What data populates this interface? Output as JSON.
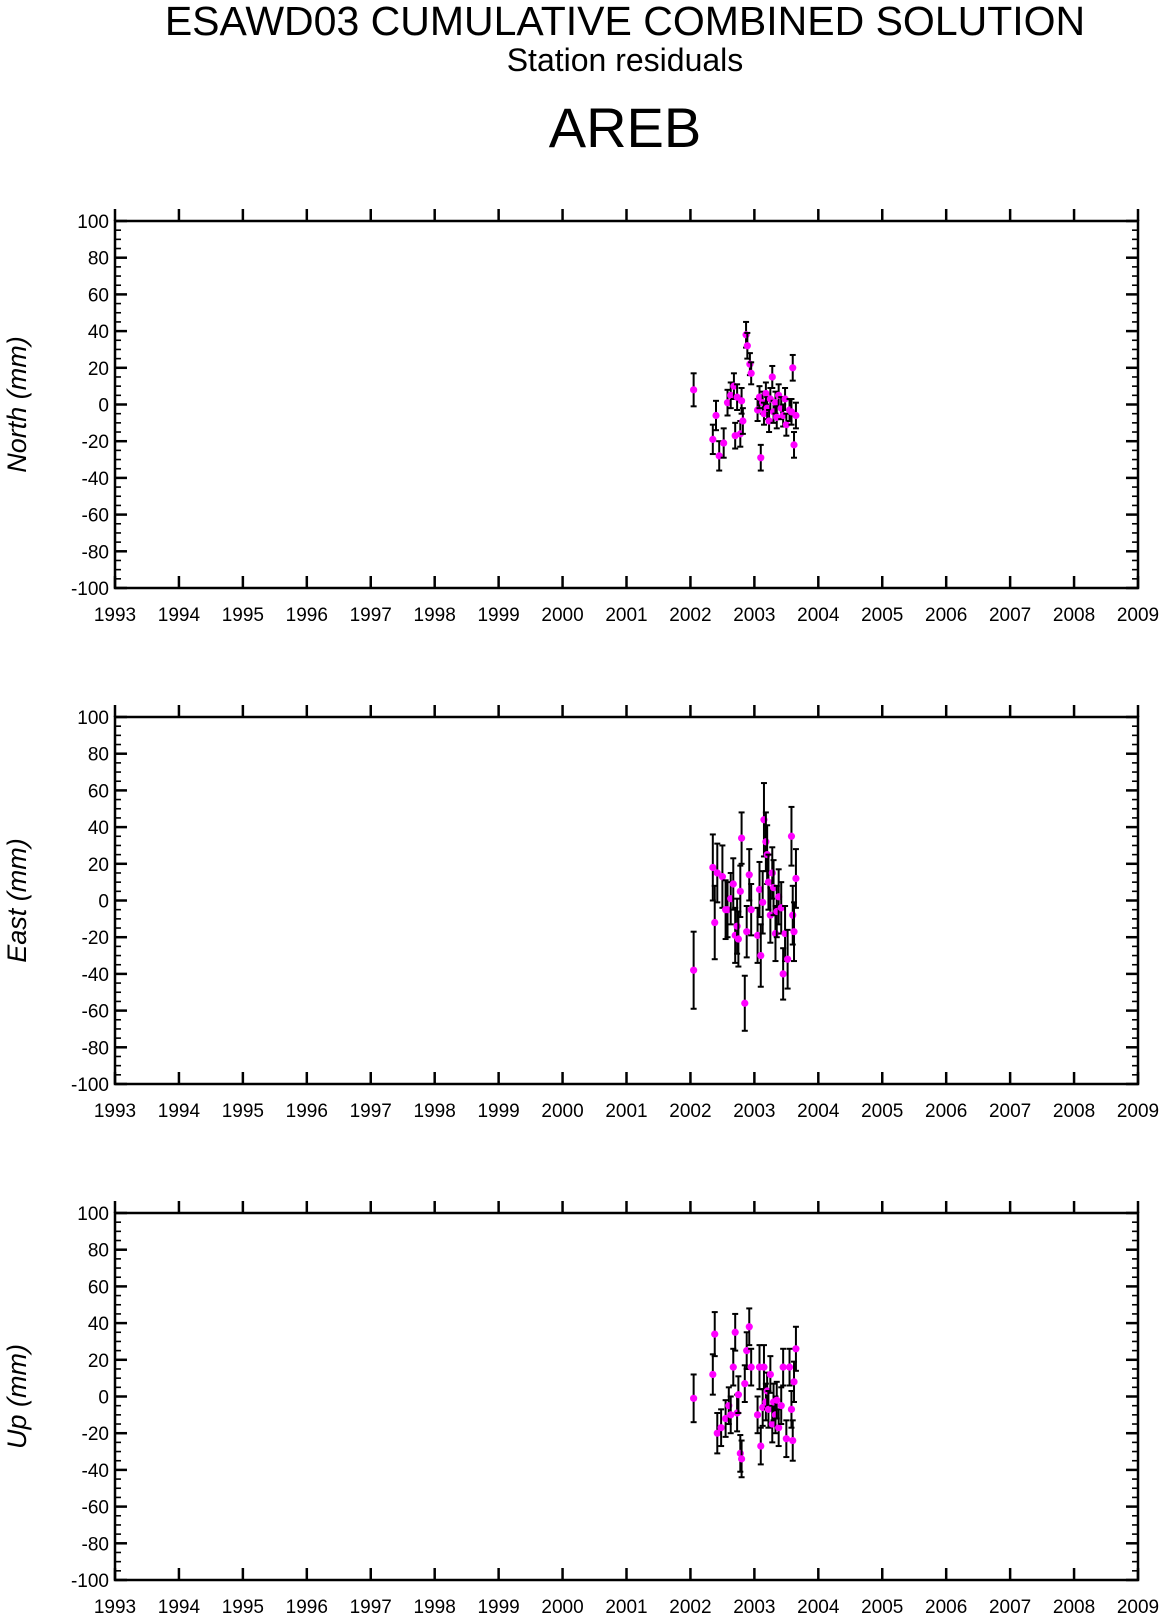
{
  "title": "ESAWD03 CUMULATIVE COMBINED SOLUTION",
  "subtitle": "Station residuals",
  "station": "AREB",
  "colors": {
    "point": "#ff00ff",
    "errorbar": "#000000",
    "axis": "#000000"
  },
  "chart_data": [
    {
      "type": "scatter",
      "ylabel": "North (mm)",
      "xlim": [
        1993,
        2009
      ],
      "ylim": [
        -100,
        100
      ],
      "xticks": [
        "1993",
        "1994",
        "1995",
        "1996",
        "1997",
        "1998",
        "1999",
        "2000",
        "2001",
        "2002",
        "2003",
        "2004",
        "2005",
        "2006",
        "2007",
        "2008",
        "2009"
      ],
      "yticks": [
        "100",
        "80",
        "60",
        "40",
        "20",
        "0",
        "-20",
        "-40",
        "-60",
        "-80",
        "-100"
      ],
      "grid": false,
      "series": [
        {
          "error_bars": true,
          "points": [
            [
              2002.05,
              8,
              9
            ],
            [
              2002.35,
              -19,
              8
            ],
            [
              2002.4,
              -6,
              8
            ],
            [
              2002.45,
              -28,
              8
            ],
            [
              2002.52,
              -21,
              8
            ],
            [
              2002.58,
              1,
              7
            ],
            [
              2002.63,
              5,
              7
            ],
            [
              2002.68,
              10,
              7
            ],
            [
              2002.7,
              -17,
              7
            ],
            [
              2002.73,
              4,
              7
            ],
            [
              2002.78,
              -16,
              7
            ],
            [
              2002.8,
              2,
              7
            ],
            [
              2002.82,
              -9,
              7
            ],
            [
              2002.87,
              38,
              7
            ],
            [
              2002.89,
              32,
              7
            ],
            [
              2002.93,
              22,
              6
            ],
            [
              2002.95,
              17,
              6
            ],
            [
              2003.05,
              -3,
              6
            ],
            [
              2003.08,
              4,
              6
            ],
            [
              2003.1,
              -29,
              7
            ],
            [
              2003.13,
              1,
              6
            ],
            [
              2003.15,
              -5,
              6
            ],
            [
              2003.18,
              6,
              6
            ],
            [
              2003.2,
              -2,
              6
            ],
            [
              2003.23,
              -9,
              6
            ],
            [
              2003.25,
              3,
              6
            ],
            [
              2003.28,
              15,
              6
            ],
            [
              2003.3,
              -4,
              6
            ],
            [
              2003.33,
              1,
              6
            ],
            [
              2003.35,
              -7,
              6
            ],
            [
              2003.38,
              5,
              6
            ],
            [
              2003.42,
              -2,
              6
            ],
            [
              2003.45,
              -6,
              6
            ],
            [
              2003.48,
              3,
              6
            ],
            [
              2003.5,
              -11,
              6
            ],
            [
              2003.55,
              -3,
              6
            ],
            [
              2003.58,
              -4,
              7
            ],
            [
              2003.6,
              20,
              7
            ],
            [
              2003.62,
              -22,
              7
            ],
            [
              2003.65,
              -6,
              7
            ]
          ]
        }
      ]
    },
    {
      "type": "scatter",
      "ylabel": "East (mm)",
      "xlim": [
        1993,
        2009
      ],
      "ylim": [
        -100,
        100
      ],
      "xticks": [
        "1993",
        "1994",
        "1995",
        "1996",
        "1997",
        "1998",
        "1999",
        "2000",
        "2001",
        "2002",
        "2003",
        "2004",
        "2005",
        "2006",
        "2007",
        "2008",
        "2009"
      ],
      "yticks": [
        "100",
        "80",
        "60",
        "40",
        "20",
        "0",
        "-20",
        "-40",
        "-60",
        "-80",
        "-100"
      ],
      "grid": false,
      "series": [
        {
          "error_bars": true,
          "points": [
            [
              2002.05,
              -38,
              21
            ],
            [
              2002.35,
              18,
              18
            ],
            [
              2002.38,
              -12,
              20
            ],
            [
              2002.42,
              15,
              16
            ],
            [
              2002.5,
              13,
              17
            ],
            [
              2002.55,
              -5,
              16
            ],
            [
              2002.58,
              -5,
              15
            ],
            [
              2002.63,
              1,
              14
            ],
            [
              2002.67,
              9,
              14
            ],
            [
              2002.7,
              -19,
              15
            ],
            [
              2002.73,
              -14,
              15
            ],
            [
              2002.75,
              -21,
              15
            ],
            [
              2002.78,
              5,
              14
            ],
            [
              2002.8,
              34,
              14
            ],
            [
              2002.85,
              -56,
              15
            ],
            [
              2002.88,
              -17,
              14
            ],
            [
              2002.92,
              14,
              14
            ],
            [
              2002.95,
              -5,
              14
            ],
            [
              2003.05,
              -19,
              15
            ],
            [
              2003.08,
              6,
              15
            ],
            [
              2003.1,
              -30,
              17
            ],
            [
              2003.13,
              -1,
              17
            ],
            [
              2003.15,
              44,
              20
            ],
            [
              2003.18,
              32,
              16
            ],
            [
              2003.2,
              25,
              16
            ],
            [
              2003.22,
              10,
              15
            ],
            [
              2003.25,
              -8,
              15
            ],
            [
              2003.28,
              15,
              14
            ],
            [
              2003.3,
              7,
              15
            ],
            [
              2003.33,
              -18,
              15
            ],
            [
              2003.35,
              -6,
              14
            ],
            [
              2003.38,
              2,
              15
            ],
            [
              2003.42,
              -4,
              14
            ],
            [
              2003.45,
              -40,
              14
            ],
            [
              2003.48,
              -18,
              15
            ],
            [
              2003.52,
              -32,
              16
            ],
            [
              2003.58,
              35,
              16
            ],
            [
              2003.6,
              -8,
              16
            ],
            [
              2003.62,
              -17,
              16
            ],
            [
              2003.65,
              12,
              16
            ]
          ]
        }
      ]
    },
    {
      "type": "scatter",
      "ylabel": "Up (mm)",
      "xlim": [
        1993,
        2009
      ],
      "ylim": [
        -100,
        100
      ],
      "xticks": [
        "1993",
        "1994",
        "1995",
        "1996",
        "1997",
        "1998",
        "1999",
        "2000",
        "2001",
        "2002",
        "2003",
        "2004",
        "2005",
        "2006",
        "2007",
        "2008",
        "2009"
      ],
      "yticks": [
        "100",
        "80",
        "60",
        "40",
        "20",
        "0",
        "-20",
        "-40",
        "-60",
        "-80",
        "-100"
      ],
      "grid": false,
      "series": [
        {
          "error_bars": true,
          "points": [
            [
              2002.05,
              -1,
              13
            ],
            [
              2002.35,
              12,
              11
            ],
            [
              2002.38,
              34,
              12
            ],
            [
              2002.42,
              -20,
              11
            ],
            [
              2002.48,
              -17,
              10
            ],
            [
              2002.55,
              -12,
              10
            ],
            [
              2002.6,
              -5,
              10
            ],
            [
              2002.63,
              -10,
              10
            ],
            [
              2002.67,
              16,
              10
            ],
            [
              2002.7,
              35,
              10
            ],
            [
              2002.73,
              -9,
              10
            ],
            [
              2002.75,
              1,
              10
            ],
            [
              2002.78,
              -31,
              10
            ],
            [
              2002.8,
              -34,
              10
            ],
            [
              2002.85,
              7,
              10
            ],
            [
              2002.88,
              25,
              10
            ],
            [
              2002.92,
              38,
              10
            ],
            [
              2002.95,
              16,
              10
            ],
            [
              2003.05,
              -10,
              10
            ],
            [
              2003.08,
              16,
              12
            ],
            [
              2003.1,
              -27,
              10
            ],
            [
              2003.13,
              -6,
              10
            ],
            [
              2003.15,
              16,
              12
            ],
            [
              2003.18,
              -3,
              10
            ],
            [
              2003.2,
              3,
              10
            ],
            [
              2003.22,
              -7,
              10
            ],
            [
              2003.25,
              12,
              10
            ],
            [
              2003.28,
              -15,
              10
            ],
            [
              2003.3,
              -3,
              10
            ],
            [
              2003.33,
              -10,
              10
            ],
            [
              2003.35,
              -2,
              10
            ],
            [
              2003.38,
              -17,
              10
            ],
            [
              2003.42,
              -5,
              10
            ],
            [
              2003.45,
              16,
              10
            ],
            [
              2003.5,
              -23,
              10
            ],
            [
              2003.55,
              16,
              10
            ],
            [
              2003.58,
              -7,
              10
            ],
            [
              2003.6,
              -24,
              11
            ],
            [
              2003.62,
              8,
              11
            ],
            [
              2003.65,
              26,
              12
            ]
          ]
        }
      ]
    }
  ]
}
